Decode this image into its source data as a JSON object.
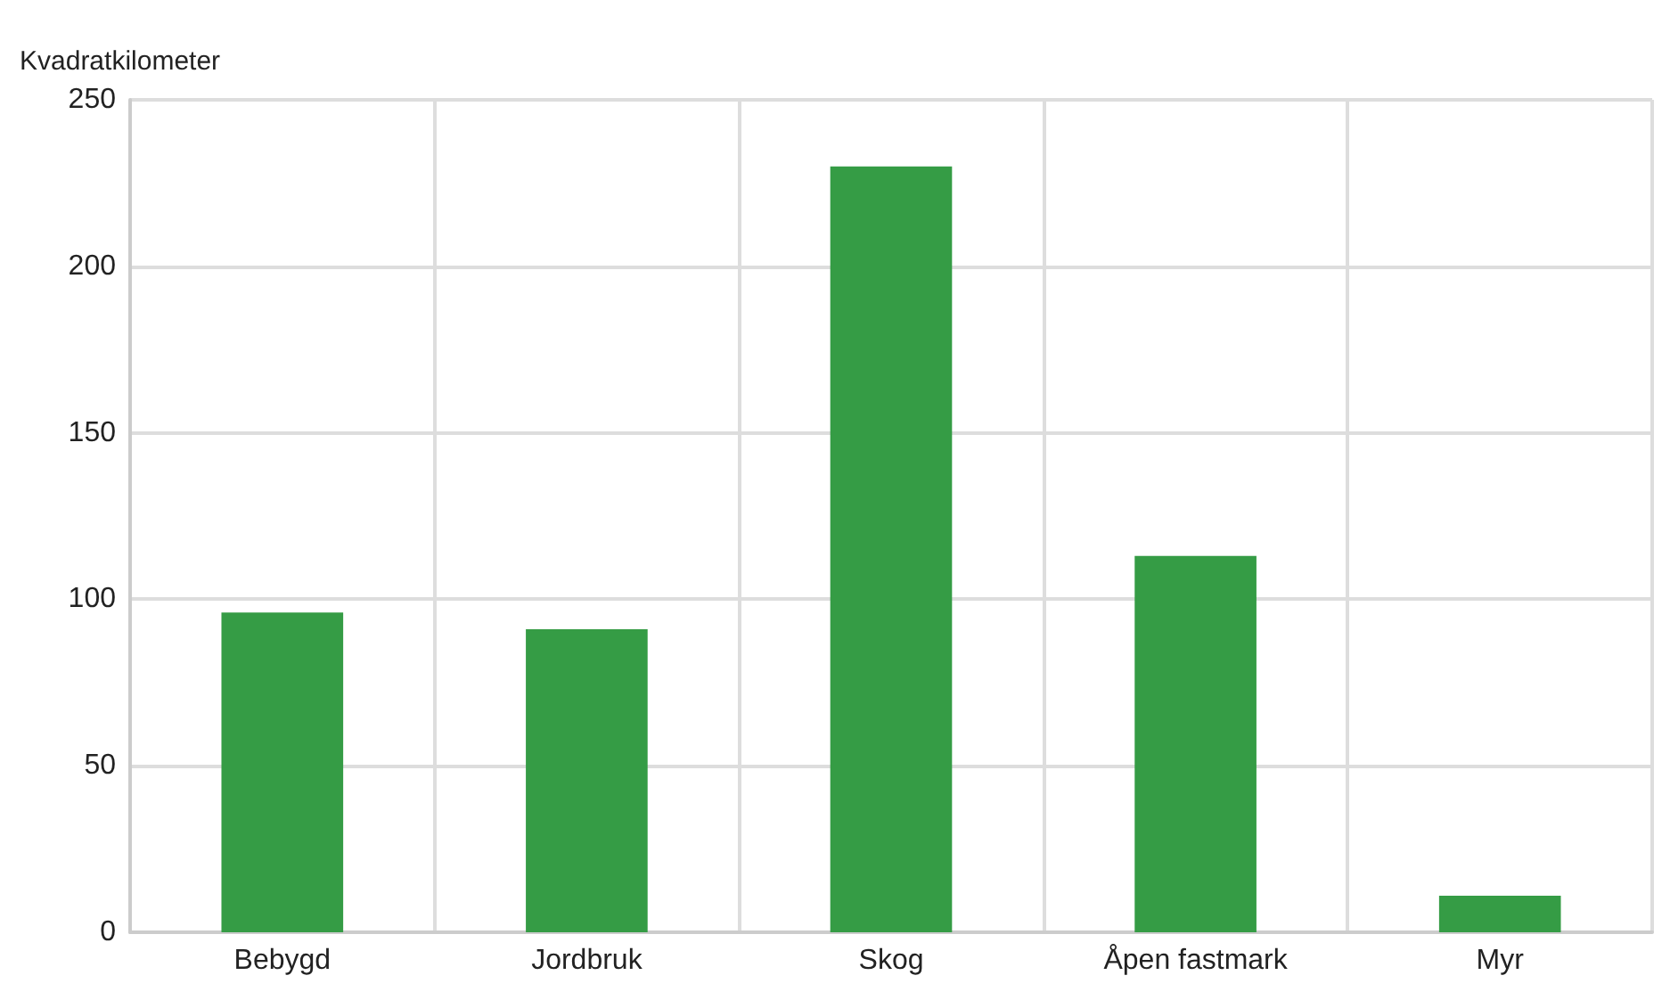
{
  "chart_data": {
    "type": "bar",
    "ylabel": "Kvadratkilometer",
    "categories": [
      "Bebygd",
      "Jordbruk",
      "Skog",
      "Åpen fastmark",
      "Myr"
    ],
    "values": [
      96,
      91,
      230,
      113,
      11
    ],
    "color": "#359c45",
    "ylim": [
      0,
      250
    ],
    "yticks": [
      0,
      50,
      100,
      150,
      200,
      250
    ],
    "grid": true
  }
}
